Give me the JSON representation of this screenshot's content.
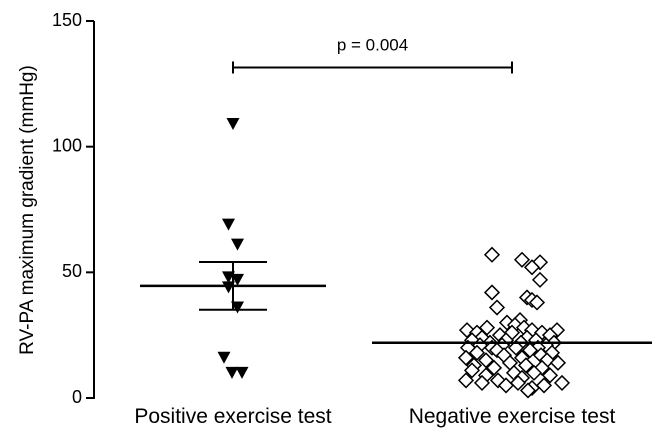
{
  "chart_data": {
    "type": "scatter",
    "title": "",
    "xlabel": "",
    "ylabel": "RV-PA maximum gradient (mmHg)",
    "ylim": [
      0,
      150
    ],
    "yticks": [
      0,
      50,
      100,
      150
    ],
    "ytick_labels": [
      "0",
      "50",
      "100",
      "150"
    ],
    "grid": false,
    "categories": [
      "Positive exercise test",
      "Negative exercise test"
    ],
    "series": [
      {
        "category": "Positive exercise test",
        "marker": "triangle-down",
        "values": [
          109,
          69,
          61,
          48,
          47,
          44,
          36,
          16,
          10,
          10
        ],
        "offsets": [
          0.0,
          -0.45,
          0.45,
          -0.45,
          0.45,
          -0.45,
          0.45,
          -0.9,
          -0.1,
          0.9
        ],
        "mean": 44.6,
        "sem_upper": 54.1,
        "sem_lower": 35.1
      },
      {
        "category": "Negative exercise test",
        "marker": "diamond-open",
        "values": [
          57,
          55,
          54,
          52,
          47,
          42,
          40,
          39,
          38,
          36,
          31,
          30,
          29,
          28,
          28,
          27,
          27,
          27,
          26,
          26,
          26,
          25,
          25,
          24,
          24,
          23,
          23,
          23,
          22,
          22,
          22,
          21,
          21,
          21,
          20,
          20,
          20,
          20,
          19,
          19,
          18,
          18,
          17,
          17,
          16,
          16,
          15,
          15,
          14,
          14,
          13,
          13,
          12,
          12,
          11,
          10,
          10,
          9,
          9,
          8,
          7,
          7,
          6,
          6,
          6,
          5,
          5,
          4,
          3
        ],
        "offsets": [
          -2.0,
          1.0,
          2.8,
          2.0,
          2.8,
          -2.0,
          1.5,
          2.0,
          2.5,
          -1.5,
          0.8,
          -0.5,
          0.3,
          -2.5,
          1.2,
          -4.5,
          2.0,
          4.5,
          -3.5,
          0.0,
          3.0,
          -1.2,
          3.8,
          -3.0,
          1.5,
          -4.0,
          -0.6,
          2.4,
          -2.2,
          0.9,
          4.2,
          -3.2,
          -1.0,
          3.4,
          -4.4,
          -2.0,
          0.4,
          2.6,
          -1.5,
          1.8,
          -3.5,
          4.0,
          -0.8,
          2.9,
          -4.6,
          1.0,
          -2.6,
          3.5,
          -0.2,
          4.6,
          -3.8,
          1.4,
          -1.8,
          3.0,
          -4.0,
          0.2,
          2.2,
          -2.6,
          3.8,
          1.0,
          -4.6,
          -1.4,
          -3.0,
          0.6,
          5.0,
          -0.6,
          3.2,
          2.0,
          1.6
        ],
        "mean": 22,
        "sem_upper": 23.2,
        "sem_lower": 20.8
      }
    ],
    "annotations": [
      {
        "text": "p = 0.004",
        "type": "bracket",
        "y": 131.5
      }
    ]
  }
}
